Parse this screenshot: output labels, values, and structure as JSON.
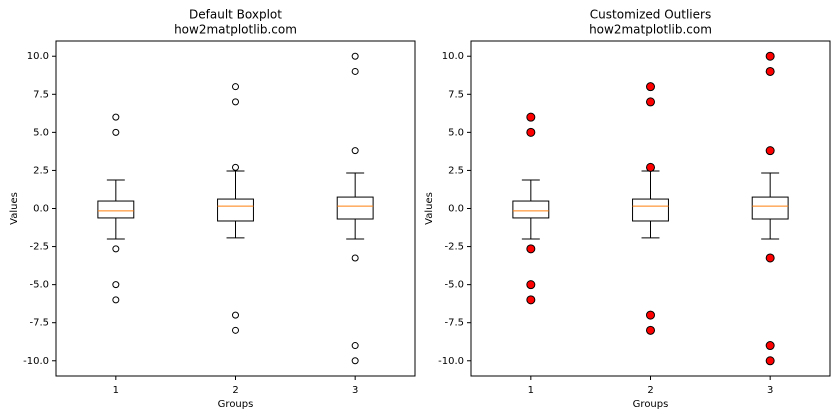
{
  "chart_data": [
    {
      "type": "box",
      "title": "Default Boxplot",
      "subtitle": "how2matplotlib.com",
      "x_label": "Groups",
      "y_label": "Values",
      "categories": [
        "1",
        "2",
        "3"
      ],
      "boxes": [
        {
          "whisker_low": -2.0,
          "q1": -0.62,
          "median": -0.16,
          "q3": 0.49,
          "whisker_high": 1.87,
          "outliers": [
            6,
            5,
            -2.65,
            -5,
            -6
          ]
        },
        {
          "whisker_low": -1.93,
          "q1": -0.82,
          "median": 0.16,
          "q3": 0.62,
          "whisker_high": 2.46,
          "outliers": [
            8,
            7,
            2.7,
            -7,
            -8
          ]
        },
        {
          "whisker_low": -2.0,
          "q1": -0.69,
          "median": 0.16,
          "q3": 0.75,
          "whisker_high": 2.33,
          "outliers": [
            10,
            9,
            3.8,
            -3.25,
            -9,
            -10
          ]
        }
      ],
      "box_color": "#000000",
      "median_color": "#ff7f0e",
      "outlier_fill": "none",
      "outlier_edge": "#000000",
      "outlier_size": 6,
      "ylim": [
        -11,
        11
      ],
      "yticks": [
        {
          "value": -10,
          "label": "-10.0"
        },
        {
          "value": -7.5,
          "label": "-7.5"
        },
        {
          "value": -5,
          "label": "-5.0"
        },
        {
          "value": -2.5,
          "label": "-2.5"
        },
        {
          "value": 0,
          "label": "0.0"
        },
        {
          "value": 2.5,
          "label": "2.5"
        },
        {
          "value": 5,
          "label": "5.0"
        },
        {
          "value": 7.5,
          "label": "7.5"
        },
        {
          "value": 10,
          "label": "10.0"
        }
      ]
    },
    {
      "type": "box",
      "title": "Customized Outliers",
      "subtitle": "how2matplotlib.com",
      "x_label": "Groups",
      "y_label": "Values",
      "categories": [
        "1",
        "2",
        "3"
      ],
      "boxes": [
        {
          "whisker_low": -2.0,
          "q1": -0.62,
          "median": -0.16,
          "q3": 0.49,
          "whisker_high": 1.87,
          "outliers": [
            6,
            5,
            -2.65,
            -5,
            -6
          ]
        },
        {
          "whisker_low": -1.93,
          "q1": -0.82,
          "median": 0.16,
          "q3": 0.62,
          "whisker_high": 2.46,
          "outliers": [
            8,
            7,
            2.7,
            -7,
            -8
          ]
        },
        {
          "whisker_low": -2.0,
          "q1": -0.69,
          "median": 0.16,
          "q3": 0.75,
          "whisker_high": 2.33,
          "outliers": [
            10,
            9,
            3.8,
            -3.25,
            -9,
            -10
          ]
        }
      ],
      "box_color": "#000000",
      "median_color": "#ff7f0e",
      "outlier_fill": "#ff0000",
      "outlier_edge": "#000000",
      "outlier_size": 8,
      "ylim": [
        -11,
        11
      ],
      "yticks": [
        {
          "value": -10,
          "label": "-10.0"
        },
        {
          "value": -7.5,
          "label": "-7.5"
        },
        {
          "value": -5,
          "label": "-5.0"
        },
        {
          "value": -2.5,
          "label": "-2.5"
        },
        {
          "value": 0,
          "label": "0.0"
        },
        {
          "value": 2.5,
          "label": "2.5"
        },
        {
          "value": 5,
          "label": "5.0"
        },
        {
          "value": 7.5,
          "label": "7.5"
        },
        {
          "value": 10,
          "label": "10.0"
        }
      ]
    }
  ]
}
